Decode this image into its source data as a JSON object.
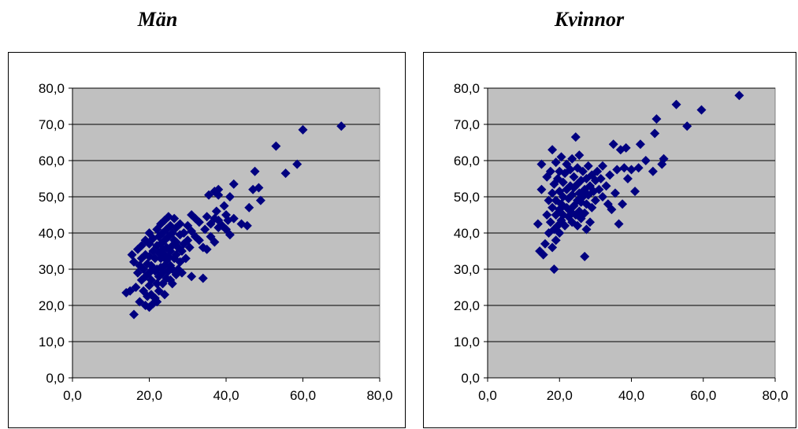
{
  "chart_data": [
    {
      "type": "scatter",
      "title": "Män",
      "xlim": [
        0,
        80
      ],
      "ylim": [
        0,
        80
      ],
      "xticks": [
        "0,0",
        "20,0",
        "40,0",
        "60,0",
        "80,0"
      ],
      "yticks": [
        "0,0",
        "10,0",
        "20,0",
        "30,0",
        "40,0",
        "50,0",
        "60,0",
        "70,0",
        "80,0"
      ],
      "grid": "horizontal",
      "marker_color": "#000080",
      "plot_background": "#c0c0c0",
      "points": [
        [
          14,
          23.5
        ],
        [
          15,
          24
        ],
        [
          15.5,
          34
        ],
        [
          16,
          17.5
        ],
        [
          16,
          32
        ],
        [
          16.5,
          25
        ],
        [
          17,
          29
        ],
        [
          17,
          35.5
        ],
        [
          17.5,
          21
        ],
        [
          17.5,
          31
        ],
        [
          18,
          27
        ],
        [
          18,
          33
        ],
        [
          18,
          36.5
        ],
        [
          18.5,
          24
        ],
        [
          18.5,
          30
        ],
        [
          19,
          20
        ],
        [
          19,
          28
        ],
        [
          19,
          34
        ],
        [
          19,
          38
        ],
        [
          19.5,
          22.5
        ],
        [
          19.5,
          31.5
        ],
        [
          20,
          19.5
        ],
        [
          20,
          25.5
        ],
        [
          20,
          29
        ],
        [
          20,
          33.5
        ],
        [
          20,
          37
        ],
        [
          20,
          40
        ],
        [
          20.5,
          23
        ],
        [
          20.5,
          27
        ],
        [
          20.5,
          31
        ],
        [
          21,
          20.5
        ],
        [
          21,
          35
        ],
        [
          21,
          38.5
        ],
        [
          21.5,
          22
        ],
        [
          21.5,
          29.5
        ],
        [
          21.5,
          33
        ],
        [
          22,
          21
        ],
        [
          22,
          26
        ],
        [
          22,
          30
        ],
        [
          22,
          36.5
        ],
        [
          22,
          41
        ],
        [
          22.5,
          24
        ],
        [
          22.5,
          28
        ],
        [
          22.5,
          34.5
        ],
        [
          22.5,
          39
        ],
        [
          23,
          30.5
        ],
        [
          23,
          33
        ],
        [
          23,
          37
        ],
        [
          23,
          42.5
        ],
        [
          23.5,
          26
        ],
        [
          23.5,
          29
        ],
        [
          23.5,
          35.5
        ],
        [
          23.5,
          40
        ],
        [
          24,
          23
        ],
        [
          24,
          31
        ],
        [
          24,
          34
        ],
        [
          24,
          38
        ],
        [
          24,
          43.5
        ],
        [
          24.5,
          27.5
        ],
        [
          24.5,
          32.5
        ],
        [
          24.5,
          36
        ],
        [
          24.5,
          41
        ],
        [
          25,
          29.5
        ],
        [
          25,
          33.5
        ],
        [
          25,
          39
        ],
        [
          25,
          44.5
        ],
        [
          25.5,
          27
        ],
        [
          25.5,
          31
        ],
        [
          25.5,
          35
        ],
        [
          25.5,
          42
        ],
        [
          26,
          26
        ],
        [
          26,
          30
        ],
        [
          26,
          36.5
        ],
        [
          26,
          40
        ],
        [
          26.5,
          33
        ],
        [
          26.5,
          38
        ],
        [
          26.5,
          44
        ],
        [
          27,
          28.5
        ],
        [
          27,
          34
        ],
        [
          27,
          37.5
        ],
        [
          27,
          41.5
        ],
        [
          27.5,
          30
        ],
        [
          27.5,
          36
        ],
        [
          28,
          32
        ],
        [
          28,
          39.5
        ],
        [
          28,
          42.5
        ],
        [
          28.5,
          29
        ],
        [
          28.5,
          35
        ],
        [
          29,
          37
        ],
        [
          29,
          40
        ],
        [
          29.5,
          33
        ],
        [
          30,
          38
        ],
        [
          30,
          42
        ],
        [
          30.5,
          36
        ],
        [
          31,
          28
        ],
        [
          31,
          40.5
        ],
        [
          31,
          45
        ],
        [
          32,
          39
        ],
        [
          32,
          44
        ],
        [
          33,
          38
        ],
        [
          33,
          43
        ],
        [
          34,
          27.5
        ],
        [
          34,
          36
        ],
        [
          34.5,
          41
        ],
        [
          35,
          35.5
        ],
        [
          35,
          44.5
        ],
        [
          35.5,
          50.5
        ],
        [
          36,
          39
        ],
        [
          36,
          42.5
        ],
        [
          37,
          37.5
        ],
        [
          37,
          44
        ],
        [
          37,
          51.5
        ],
        [
          37.5,
          46
        ],
        [
          38,
          41.5
        ],
        [
          38,
          43.5
        ],
        [
          38,
          50.5
        ],
        [
          38,
          52
        ],
        [
          39,
          42
        ],
        [
          39.5,
          47.5
        ],
        [
          40,
          41
        ],
        [
          40,
          45
        ],
        [
          40.5,
          43.5
        ],
        [
          41,
          39.5
        ],
        [
          41,
          50
        ],
        [
          42,
          44
        ],
        [
          42,
          53.5
        ],
        [
          44,
          42.5
        ],
        [
          45.5,
          42
        ],
        [
          46,
          47
        ],
        [
          47,
          52
        ],
        [
          47.5,
          57
        ],
        [
          48.5,
          52.5
        ],
        [
          49,
          49
        ],
        [
          53,
          64
        ],
        [
          55.5,
          56.5
        ],
        [
          58.5,
          59
        ],
        [
          60,
          68.5
        ],
        [
          70,
          69.5
        ]
      ]
    },
    {
      "type": "scatter",
      "title": "Kvinnor",
      "xlim": [
        0,
        80
      ],
      "ylim": [
        0,
        80
      ],
      "xticks": [
        "0,0",
        "20,0",
        "40,0",
        "60,0",
        "80,0"
      ],
      "yticks": [
        "0,0",
        "10,0",
        "20,0",
        "30,0",
        "40,0",
        "50,0",
        "60,0",
        "70,0",
        "80,0"
      ],
      "grid": "horizontal",
      "marker_color": "#000080",
      "plot_background": "#c0c0c0",
      "points": [
        [
          14,
          42.5
        ],
        [
          14.5,
          35
        ],
        [
          15,
          52
        ],
        [
          15,
          59
        ],
        [
          15.5,
          34
        ],
        [
          16,
          37
        ],
        [
          16.5,
          45
        ],
        [
          16.5,
          55.5
        ],
        [
          17,
          40
        ],
        [
          17,
          49
        ],
        [
          17.5,
          43
        ],
        [
          17.5,
          57
        ],
        [
          18,
          36
        ],
        [
          18,
          47
        ],
        [
          18,
          51
        ],
        [
          18,
          63
        ],
        [
          18.5,
          30
        ],
        [
          18.5,
          41
        ],
        [
          18.5,
          53.5
        ],
        [
          19,
          38
        ],
        [
          19,
          45
        ],
        [
          19,
          49
        ],
        [
          19,
          59.5
        ],
        [
          19.5,
          42
        ],
        [
          19.5,
          55
        ],
        [
          20,
          40
        ],
        [
          20,
          46.5
        ],
        [
          20,
          51.5
        ],
        [
          20,
          57
        ],
        [
          20.5,
          43.5
        ],
        [
          20.5,
          48
        ],
        [
          20.5,
          61
        ],
        [
          21,
          45
        ],
        [
          21,
          50
        ],
        [
          21,
          54
        ],
        [
          21.5,
          42
        ],
        [
          21.5,
          56.5
        ],
        [
          22,
          47
        ],
        [
          22,
          52
        ],
        [
          22,
          59
        ],
        [
          22.5,
          44.5
        ],
        [
          22.5,
          49.5
        ],
        [
          23,
          46
        ],
        [
          23,
          53
        ],
        [
          23,
          57.5
        ],
        [
          23.5,
          43
        ],
        [
          23.5,
          50.5
        ],
        [
          23.5,
          60.5
        ],
        [
          24,
          47.5
        ],
        [
          24,
          52.5
        ],
        [
          24,
          55.5
        ],
        [
          24.5,
          45
        ],
        [
          24.5,
          66.5
        ],
        [
          25,
          42
        ],
        [
          25,
          49
        ],
        [
          25,
          53.5
        ],
        [
          25,
          58
        ],
        [
          25.5,
          46
        ],
        [
          25.5,
          51
        ],
        [
          25.5,
          61.5
        ],
        [
          26,
          44
        ],
        [
          26,
          48.5
        ],
        [
          26,
          54.5
        ],
        [
          26.5,
          50
        ],
        [
          26.5,
          57
        ],
        [
          27,
          33.5
        ],
        [
          27,
          45.5
        ],
        [
          27,
          52
        ],
        [
          27.5,
          41
        ],
        [
          27.5,
          48
        ],
        [
          27.5,
          55
        ],
        [
          28,
          50.5
        ],
        [
          28,
          58.5
        ],
        [
          28.5,
          43
        ],
        [
          28.5,
          53
        ],
        [
          29,
          47
        ],
        [
          29,
          56
        ],
        [
          29.5,
          51.5
        ],
        [
          30,
          49
        ],
        [
          30,
          54.5
        ],
        [
          30.5,
          57
        ],
        [
          31,
          52
        ],
        [
          31.5,
          55
        ],
        [
          32,
          50
        ],
        [
          32,
          58.5
        ],
        [
          33,
          53
        ],
        [
          33.5,
          48
        ],
        [
          34,
          56
        ],
        [
          34.5,
          46.5
        ],
        [
          35,
          64.5
        ],
        [
          35.5,
          51
        ],
        [
          36,
          57.5
        ],
        [
          36.5,
          42.5
        ],
        [
          37,
          63
        ],
        [
          37.5,
          48
        ],
        [
          38,
          58
        ],
        [
          38.5,
          63.5
        ],
        [
          39,
          55
        ],
        [
          40,
          57.5
        ],
        [
          41,
          51.5
        ],
        [
          42,
          58
        ],
        [
          42.5,
          64.5
        ],
        [
          44,
          60
        ],
        [
          46,
          57
        ],
        [
          46.5,
          67.5
        ],
        [
          47,
          71.5
        ],
        [
          48.5,
          59
        ],
        [
          49,
          60.5
        ],
        [
          52.5,
          75.5
        ],
        [
          55.5,
          69.5
        ],
        [
          59.5,
          74
        ],
        [
          70,
          78
        ]
      ]
    }
  ]
}
